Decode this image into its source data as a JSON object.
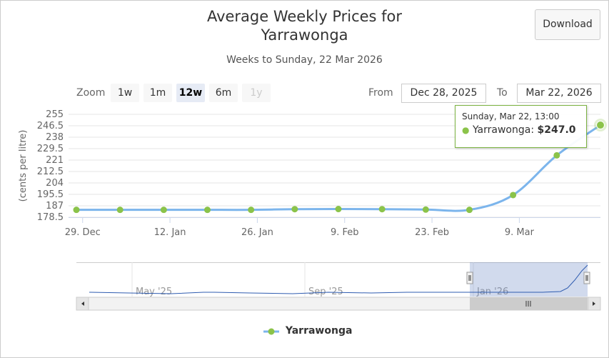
{
  "title_line1": "Average Weekly Prices for",
  "title_line2": "Yarrawonga",
  "subtitle": "Weeks to Sunday, 22 Mar 2026",
  "download_label": "Download",
  "zoom": {
    "label": "Zoom",
    "buttons": [
      {
        "label": "1w",
        "state": "normal"
      },
      {
        "label": "1m",
        "state": "normal"
      },
      {
        "label": "12w",
        "state": "active"
      },
      {
        "label": "6m",
        "state": "normal"
      },
      {
        "label": "1y",
        "state": "disabled"
      }
    ]
  },
  "range": {
    "from_label": "From",
    "from_value": "Dec 28, 2025",
    "to_label": "To",
    "to_value": "Mar 22, 2026"
  },
  "tooltip": {
    "header": "Sunday, Mar 22, 13:00",
    "series": "Yarrawonga",
    "value": "$247.0"
  },
  "navigator_labels": [
    "May '25",
    "Sep '25",
    "Jan '26"
  ],
  "legend_label": "Yarrawonga",
  "colors": {
    "series": "#7cb5ec",
    "marker": "#8bc34a",
    "navigator_line": "#2f5cb0",
    "navigator_mask": "rgba(102,133,194,0.3)"
  },
  "chart_data": {
    "type": "line",
    "title": "Average Weekly Prices for Yarrawonga",
    "subtitle": "Weeks to Sunday, 22 Mar 2026",
    "ylabel": "(cents per litre)",
    "ylim": [
      178.5,
      255
    ],
    "yticks": [
      "255",
      "246.5",
      "238",
      "229.5",
      "221",
      "212.5",
      "204",
      "195.5",
      "187",
      "178.5"
    ],
    "xticks": [
      "29. Dec",
      "12. Jan",
      "26. Jan",
      "9. Feb",
      "23. Feb",
      "9. Mar"
    ],
    "x": [
      "2025-12-28",
      "2026-01-04",
      "2026-01-11",
      "2026-01-18",
      "2026-01-25",
      "2026-02-01",
      "2026-02-08",
      "2026-02-15",
      "2026-02-22",
      "2026-03-01",
      "2026-03-08",
      "2026-03-15",
      "2026-03-22"
    ],
    "series": [
      {
        "name": "Yarrawonga",
        "values": [
          184.0,
          184.0,
          184.0,
          184.0,
          184.0,
          184.5,
          184.6,
          184.5,
          184.2,
          184.0,
          195.0,
          224.5,
          247.0
        ]
      }
    ],
    "grid": true,
    "legend": "bottom-center"
  }
}
